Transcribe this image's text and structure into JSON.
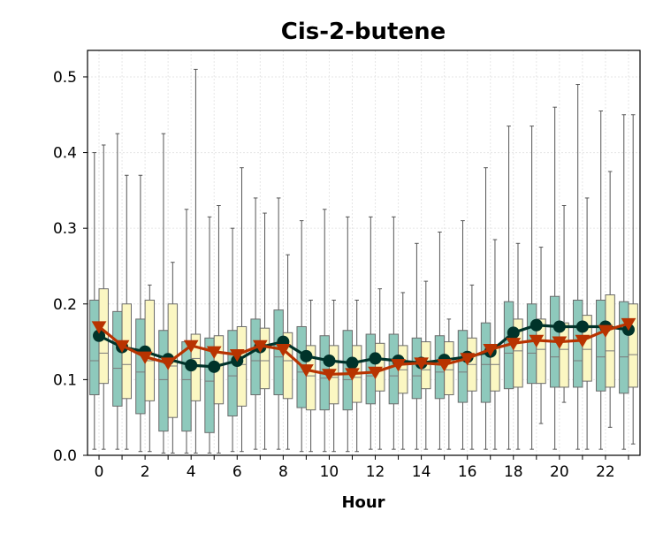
{
  "chart_data": {
    "type": "box",
    "title": "Cis-2-butene",
    "xlabel": "Hour",
    "ylabel": "",
    "ylim": [
      0.0,
      0.535
    ],
    "xlim": [
      -0.5,
      23.5
    ],
    "grid": true,
    "xticks": [
      0,
      2,
      4,
      6,
      8,
      10,
      12,
      14,
      16,
      18,
      20,
      22
    ],
    "xtick_labels": [
      "0",
      "2",
      "4",
      "6",
      "8",
      "10",
      "12",
      "14",
      "16",
      "18",
      "20",
      "22"
    ],
    "yticks": [
      0.0,
      0.1,
      0.2,
      0.3,
      0.4,
      0.5
    ],
    "ytick_labels": [
      "0.0",
      "0.1",
      "0.2",
      "0.3",
      "0.4",
      "0.5"
    ],
    "hours": [
      0,
      1,
      2,
      3,
      4,
      5,
      6,
      7,
      8,
      9,
      10,
      11,
      12,
      13,
      14,
      15,
      16,
      17,
      18,
      19,
      20,
      21,
      22,
      23
    ],
    "box_series": [
      {
        "color": "#8ec9bc",
        "boxes": [
          {
            "whislo": 0.008,
            "q1": 0.08,
            "med": 0.125,
            "q3": 0.205,
            "whishi": 0.4
          },
          {
            "whislo": 0.008,
            "q1": 0.065,
            "med": 0.115,
            "q3": 0.19,
            "whishi": 0.425
          },
          {
            "whislo": 0.005,
            "q1": 0.055,
            "med": 0.11,
            "q3": 0.18,
            "whishi": 0.37
          },
          {
            "whislo": 0.003,
            "q1": 0.032,
            "med": 0.1,
            "q3": 0.165,
            "whishi": 0.425
          },
          {
            "whislo": 0.003,
            "q1": 0.032,
            "med": 0.1,
            "q3": 0.15,
            "whishi": 0.325
          },
          {
            "whislo": 0.003,
            "q1": 0.03,
            "med": 0.098,
            "q3": 0.155,
            "whishi": 0.315
          },
          {
            "whislo": 0.005,
            "q1": 0.052,
            "med": 0.105,
            "q3": 0.165,
            "whishi": 0.3
          },
          {
            "whislo": 0.008,
            "q1": 0.08,
            "med": 0.125,
            "q3": 0.18,
            "whishi": 0.34
          },
          {
            "whislo": 0.008,
            "q1": 0.08,
            "med": 0.13,
            "q3": 0.192,
            "whishi": 0.34
          },
          {
            "whislo": 0.005,
            "q1": 0.063,
            "med": 0.11,
            "q3": 0.17,
            "whishi": 0.31
          },
          {
            "whislo": 0.005,
            "q1": 0.06,
            "med": 0.102,
            "q3": 0.158,
            "whishi": 0.325
          },
          {
            "whislo": 0.005,
            "q1": 0.06,
            "med": 0.1,
            "q3": 0.165,
            "whishi": 0.315
          },
          {
            "whislo": 0.008,
            "q1": 0.068,
            "med": 0.105,
            "q3": 0.16,
            "whishi": 0.315
          },
          {
            "whislo": 0.008,
            "q1": 0.068,
            "med": 0.105,
            "q3": 0.16,
            "whishi": 0.315
          },
          {
            "whislo": 0.008,
            "q1": 0.075,
            "med": 0.105,
            "q3": 0.155,
            "whishi": 0.28
          },
          {
            "whislo": 0.008,
            "q1": 0.075,
            "med": 0.11,
            "q3": 0.158,
            "whishi": 0.295
          },
          {
            "whislo": 0.008,
            "q1": 0.07,
            "med": 0.11,
            "q3": 0.165,
            "whishi": 0.31
          },
          {
            "whislo": 0.008,
            "q1": 0.07,
            "med": 0.12,
            "q3": 0.175,
            "whishi": 0.38
          },
          {
            "whislo": 0.008,
            "q1": 0.088,
            "med": 0.135,
            "q3": 0.203,
            "whishi": 0.435
          },
          {
            "whislo": 0.008,
            "q1": 0.095,
            "med": 0.135,
            "q3": 0.2,
            "whishi": 0.435
          },
          {
            "whislo": 0.008,
            "q1": 0.09,
            "med": 0.13,
            "q3": 0.21,
            "whishi": 0.46
          },
          {
            "whislo": 0.008,
            "q1": 0.09,
            "med": 0.125,
            "q3": 0.205,
            "whishi": 0.49
          },
          {
            "whislo": 0.008,
            "q1": 0.085,
            "med": 0.13,
            "q3": 0.205,
            "whishi": 0.455
          },
          {
            "whislo": 0.008,
            "q1": 0.082,
            "med": 0.13,
            "q3": 0.203,
            "whishi": 0.45
          }
        ]
      },
      {
        "color": "#fbf7c2",
        "boxes": [
          {
            "whislo": 0.008,
            "q1": 0.095,
            "med": 0.135,
            "q3": 0.22,
            "whishi": 0.41
          },
          {
            "whislo": 0.008,
            "q1": 0.075,
            "med": 0.12,
            "q3": 0.2,
            "whishi": 0.37
          },
          {
            "whislo": 0.005,
            "q1": 0.072,
            "med": 0.125,
            "q3": 0.205,
            "whishi": 0.225
          },
          {
            "whislo": 0.003,
            "q1": 0.05,
            "med": 0.118,
            "q3": 0.2,
            "whishi": 0.255
          },
          {
            "whislo": 0.003,
            "q1": 0.072,
            "med": 0.128,
            "q3": 0.16,
            "whishi": 0.51
          },
          {
            "whislo": 0.003,
            "q1": 0.068,
            "med": 0.12,
            "q3": 0.158,
            "whishi": 0.33
          },
          {
            "whislo": 0.005,
            "q1": 0.065,
            "med": 0.12,
            "q3": 0.17,
            "whishi": 0.38
          },
          {
            "whislo": 0.008,
            "q1": 0.088,
            "med": 0.125,
            "q3": 0.168,
            "whishi": 0.32
          },
          {
            "whislo": 0.008,
            "q1": 0.075,
            "med": 0.125,
            "q3": 0.162,
            "whishi": 0.265
          },
          {
            "whislo": 0.005,
            "q1": 0.06,
            "med": 0.105,
            "q3": 0.145,
            "whishi": 0.205
          },
          {
            "whislo": 0.005,
            "q1": 0.068,
            "med": 0.103,
            "q3": 0.145,
            "whishi": 0.205
          },
          {
            "whislo": 0.005,
            "q1": 0.07,
            "med": 0.103,
            "q3": 0.145,
            "whishi": 0.205
          },
          {
            "whislo": 0.008,
            "q1": 0.085,
            "med": 0.113,
            "q3": 0.148,
            "whishi": 0.22
          },
          {
            "whislo": 0.008,
            "q1": 0.082,
            "med": 0.113,
            "q3": 0.145,
            "whishi": 0.215
          },
          {
            "whislo": 0.008,
            "q1": 0.088,
            "med": 0.113,
            "q3": 0.15,
            "whishi": 0.23
          },
          {
            "whislo": 0.008,
            "q1": 0.08,
            "med": 0.113,
            "q3": 0.15,
            "whishi": 0.18
          },
          {
            "whislo": 0.008,
            "q1": 0.085,
            "med": 0.12,
            "q3": 0.155,
            "whishi": 0.225
          },
          {
            "whislo": 0.008,
            "q1": 0.085,
            "med": 0.12,
            "q3": 0.145,
            "whishi": 0.285
          },
          {
            "whislo": 0.008,
            "q1": 0.09,
            "med": 0.138,
            "q3": 0.18,
            "whishi": 0.28
          },
          {
            "whislo": 0.042,
            "q1": 0.095,
            "med": 0.14,
            "q3": 0.18,
            "whishi": 0.275
          },
          {
            "whislo": 0.07,
            "q1": 0.09,
            "med": 0.14,
            "q3": 0.175,
            "whishi": 0.33
          },
          {
            "whislo": 0.008,
            "q1": 0.098,
            "med": 0.14,
            "q3": 0.185,
            "whishi": 0.34
          },
          {
            "whislo": 0.037,
            "q1": 0.09,
            "med": 0.138,
            "q3": 0.212,
            "whishi": 0.375
          },
          {
            "whislo": 0.015,
            "q1": 0.09,
            "med": 0.133,
            "q3": 0.2,
            "whishi": 0.45
          }
        ]
      }
    ],
    "line_series": [
      {
        "color": "#00332a",
        "marker": "circle",
        "values": [
          0.158,
          0.143,
          0.137,
          0.127,
          0.119,
          0.117,
          0.125,
          0.143,
          0.15,
          0.131,
          0.125,
          0.122,
          0.128,
          0.125,
          0.122,
          0.126,
          0.13,
          0.137,
          0.162,
          0.172,
          0.17,
          0.17,
          0.17,
          0.166
        ]
      },
      {
        "color": "#b83300",
        "marker": "triangle-down",
        "values": [
          0.17,
          0.145,
          0.13,
          0.122,
          0.145,
          0.137,
          0.133,
          0.145,
          0.14,
          0.113,
          0.107,
          0.108,
          0.11,
          0.12,
          0.122,
          0.12,
          0.128,
          0.14,
          0.148,
          0.152,
          0.15,
          0.152,
          0.165,
          0.174
        ]
      }
    ]
  }
}
